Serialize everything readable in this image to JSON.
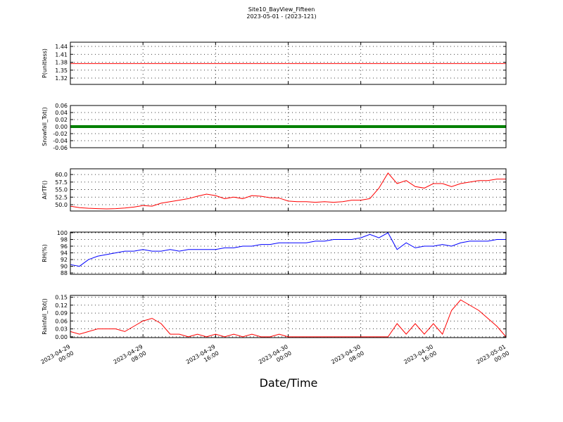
{
  "chart_data": [
    {
      "type": "line",
      "title": "Site10_BayView_Fifteen",
      "subtitle": "2023-05-01 - (2023-121)",
      "ylabel": "P(unitless)",
      "color": "#ff0000",
      "x": [
        "2023-04-29 00:00",
        "2023-04-29 01:00",
        "2023-04-29 02:00",
        "2023-04-29 03:00",
        "2023-04-29 04:00",
        "2023-04-29 05:00",
        "2023-04-29 06:00",
        "2023-04-29 07:00",
        "2023-04-29 08:00",
        "2023-04-29 09:00",
        "2023-04-29 10:00",
        "2023-04-29 11:00",
        "2023-04-29 12:00",
        "2023-04-29 13:00",
        "2023-04-29 14:00",
        "2023-04-29 15:00",
        "2023-04-29 16:00",
        "2023-04-29 17:00",
        "2023-04-29 18:00",
        "2023-04-29 19:00",
        "2023-04-29 20:00",
        "2023-04-29 21:00",
        "2023-04-29 22:00",
        "2023-04-29 23:00",
        "2023-04-30 00:00",
        "2023-04-30 01:00",
        "2023-04-30 02:00",
        "2023-04-30 03:00",
        "2023-04-30 04:00",
        "2023-04-30 05:00",
        "2023-04-30 06:00",
        "2023-04-30 07:00",
        "2023-04-30 08:00",
        "2023-04-30 09:00",
        "2023-04-30 10:00",
        "2023-04-30 11:00",
        "2023-04-30 12:00",
        "2023-04-30 13:00",
        "2023-04-30 14:00",
        "2023-04-30 15:00",
        "2023-04-30 16:00",
        "2023-04-30 17:00",
        "2023-04-30 18:00",
        "2023-04-30 19:00",
        "2023-04-30 20:00",
        "2023-04-30 21:00",
        "2023-04-30 22:00",
        "2023-04-30 23:00",
        "2023-05-01 00:00"
      ],
      "values": [
        1.375,
        1.375,
        1.375,
        1.375,
        1.375,
        1.375,
        1.375,
        1.375,
        1.375,
        1.375,
        1.375,
        1.375,
        1.375,
        1.375,
        1.375,
        1.375,
        1.375,
        1.375,
        1.375,
        1.375,
        1.375,
        1.375,
        1.375,
        1.375,
        1.375,
        1.375,
        1.375,
        1.375,
        1.375,
        1.375,
        1.375,
        1.375,
        1.375,
        1.375,
        1.375,
        1.375,
        1.375,
        1.375,
        1.375,
        1.375,
        1.375,
        1.375,
        1.375,
        1.375,
        1.375,
        1.375,
        1.375,
        1.375,
        1.375
      ],
      "ylim": [
        1.296,
        1.456
      ],
      "yticks": [
        1.32,
        1.35,
        1.38,
        1.41,
        1.44
      ],
      "xlim": [
        "2023-04-29 00:00",
        "2023-05-01 00:00"
      ],
      "xticks": [
        "2023-04-29 00:00",
        "2023-04-29 08:00",
        "2023-04-29 16:00",
        "2023-04-30 00:00",
        "2023-04-30 08:00",
        "2023-04-30 16:00",
        "2023-05-01 00:00"
      ],
      "grid": true
    },
    {
      "type": "line",
      "ylabel": "Snowfall_Tot()",
      "color": "#008000",
      "markers": true,
      "x": [
        "2023-04-29 00:00",
        "2023-04-29 01:00",
        "2023-04-29 02:00",
        "2023-04-29 03:00",
        "2023-04-29 04:00",
        "2023-04-29 05:00",
        "2023-04-29 06:00",
        "2023-04-29 07:00",
        "2023-04-29 08:00",
        "2023-04-29 09:00",
        "2023-04-29 10:00",
        "2023-04-29 11:00",
        "2023-04-29 12:00",
        "2023-04-29 13:00",
        "2023-04-29 14:00",
        "2023-04-29 15:00",
        "2023-04-29 16:00",
        "2023-04-29 17:00",
        "2023-04-29 18:00",
        "2023-04-29 19:00",
        "2023-04-29 20:00",
        "2023-04-29 21:00",
        "2023-04-29 22:00",
        "2023-04-29 23:00",
        "2023-04-30 00:00",
        "2023-04-30 01:00",
        "2023-04-30 02:00",
        "2023-04-30 03:00",
        "2023-04-30 04:00",
        "2023-04-30 05:00",
        "2023-04-30 06:00",
        "2023-04-30 07:00",
        "2023-04-30 08:00",
        "2023-04-30 09:00",
        "2023-04-30 10:00",
        "2023-04-30 11:00",
        "2023-04-30 12:00",
        "2023-04-30 13:00",
        "2023-04-30 14:00",
        "2023-04-30 15:00",
        "2023-04-30 16:00",
        "2023-04-30 17:00",
        "2023-04-30 18:00",
        "2023-04-30 19:00",
        "2023-04-30 20:00",
        "2023-04-30 21:00",
        "2023-04-30 22:00",
        "2023-04-30 23:00",
        "2023-05-01 00:00"
      ],
      "values": [
        0,
        0,
        0,
        0,
        0,
        0,
        0,
        0,
        0,
        0,
        0,
        0,
        0,
        0,
        0,
        0,
        0,
        0,
        0,
        0,
        0,
        0,
        0,
        0,
        0,
        0,
        0,
        0,
        0,
        0,
        0,
        0,
        0,
        0,
        0,
        0,
        0,
        0,
        0,
        0,
        0,
        0,
        0,
        0,
        0,
        0,
        0,
        0,
        0
      ],
      "ylim": [
        -0.06,
        0.06
      ],
      "yticks": [
        -0.06,
        -0.04,
        -0.02,
        {
          "value": 0,
          "label": "0.00"
        },
        0.02,
        0.04,
        0.06
      ],
      "xlim": [
        "2023-04-29 00:00",
        "2023-05-01 00:00"
      ],
      "xticks": [
        "2023-04-29 00:00",
        "2023-04-29 08:00",
        "2023-04-29 16:00",
        "2023-04-30 00:00",
        "2023-04-30 08:00",
        "2023-04-30 16:00",
        "2023-05-01 00:00"
      ],
      "grid": true
    },
    {
      "type": "line",
      "ylabel": "AirTF()",
      "color": "#ff0000",
      "x": [
        "2023-04-29 00:00",
        "2023-04-29 01:00",
        "2023-04-29 02:00",
        "2023-04-29 03:00",
        "2023-04-29 04:00",
        "2023-04-29 05:00",
        "2023-04-29 06:00",
        "2023-04-29 07:00",
        "2023-04-29 08:00",
        "2023-04-29 09:00",
        "2023-04-29 10:00",
        "2023-04-29 11:00",
        "2023-04-29 12:00",
        "2023-04-29 13:00",
        "2023-04-29 14:00",
        "2023-04-29 15:00",
        "2023-04-29 16:00",
        "2023-04-29 17:00",
        "2023-04-29 18:00",
        "2023-04-29 19:00",
        "2023-04-29 20:00",
        "2023-04-29 21:00",
        "2023-04-29 22:00",
        "2023-04-29 23:00",
        "2023-04-30 00:00",
        "2023-04-30 01:00",
        "2023-04-30 02:00",
        "2023-04-30 03:00",
        "2023-04-30 04:00",
        "2023-04-30 05:00",
        "2023-04-30 06:00",
        "2023-04-30 07:00",
        "2023-04-30 08:00",
        "2023-04-30 09:00",
        "2023-04-30 10:00",
        "2023-04-30 11:00",
        "2023-04-30 12:00",
        "2023-04-30 13:00",
        "2023-04-30 14:00",
        "2023-04-30 15:00",
        "2023-04-30 16:00",
        "2023-04-30 17:00",
        "2023-04-30 18:00",
        "2023-04-30 19:00",
        "2023-04-30 20:00",
        "2023-04-30 21:00",
        "2023-04-30 22:00",
        "2023-04-30 23:00",
        "2023-05-01 00:00"
      ],
      "values": [
        49.5,
        49.0,
        48.8,
        48.7,
        48.6,
        48.7,
        48.9,
        49.2,
        49.7,
        49.5,
        50.5,
        51.0,
        51.5,
        52.0,
        52.8,
        53.5,
        53.0,
        52.0,
        52.5,
        52.0,
        53.0,
        52.8,
        52.3,
        52.2,
        51.2,
        51.0,
        51.0,
        50.8,
        51.0,
        50.8,
        51.0,
        51.5,
        51.5,
        52.0,
        55.5,
        60.5,
        57.0,
        58.0,
        56.0,
        55.5,
        57.0,
        57.0,
        56.0,
        57.0,
        57.5,
        58.0,
        58.0,
        58.5,
        58.5
      ],
      "ylim": [
        47.9,
        61.9
      ],
      "yticks": [
        {
          "value": 50,
          "label": "50.0"
        },
        52.5,
        {
          "value": 55,
          "label": "55.0"
        },
        57.5,
        {
          "value": 60,
          "label": "60.0"
        }
      ],
      "xlim": [
        "2023-04-29 00:00",
        "2023-05-01 00:00"
      ],
      "xticks": [
        "2023-04-29 00:00",
        "2023-04-29 08:00",
        "2023-04-29 16:00",
        "2023-04-30 00:00",
        "2023-04-30 08:00",
        "2023-04-30 16:00",
        "2023-05-01 00:00"
      ],
      "grid": true
    },
    {
      "type": "line",
      "ylabel": "RH(%)",
      "color": "#0000ff",
      "x": [
        "2023-04-29 00:00",
        "2023-04-29 01:00",
        "2023-04-29 02:00",
        "2023-04-29 03:00",
        "2023-04-29 04:00",
        "2023-04-29 05:00",
        "2023-04-29 06:00",
        "2023-04-29 07:00",
        "2023-04-29 08:00",
        "2023-04-29 09:00",
        "2023-04-29 10:00",
        "2023-04-29 11:00",
        "2023-04-29 12:00",
        "2023-04-29 13:00",
        "2023-04-29 14:00",
        "2023-04-29 15:00",
        "2023-04-29 16:00",
        "2023-04-29 17:00",
        "2023-04-29 18:00",
        "2023-04-29 19:00",
        "2023-04-29 20:00",
        "2023-04-29 21:00",
        "2023-04-29 22:00",
        "2023-04-29 23:00",
        "2023-04-30 00:00",
        "2023-04-30 01:00",
        "2023-04-30 02:00",
        "2023-04-30 03:00",
        "2023-04-30 04:00",
        "2023-04-30 05:00",
        "2023-04-30 06:00",
        "2023-04-30 07:00",
        "2023-04-30 08:00",
        "2023-04-30 09:00",
        "2023-04-30 10:00",
        "2023-04-30 11:00",
        "2023-04-30 12:00",
        "2023-04-30 13:00",
        "2023-04-30 14:00",
        "2023-04-30 15:00",
        "2023-04-30 16:00",
        "2023-04-30 17:00",
        "2023-04-30 18:00",
        "2023-04-30 19:00",
        "2023-04-30 20:00",
        "2023-04-30 21:00",
        "2023-04-30 22:00",
        "2023-04-30 23:00",
        "2023-05-01 00:00"
      ],
      "values": [
        90.5,
        90.0,
        92.0,
        93.0,
        93.5,
        94.0,
        94.5,
        94.5,
        95.0,
        94.5,
        94.5,
        95.0,
        94.5,
        95.0,
        95.0,
        95.0,
        95.0,
        95.5,
        95.5,
        96.0,
        96.0,
        96.5,
        96.5,
        97.0,
        97.0,
        97.0,
        97.0,
        97.5,
        97.5,
        98.0,
        98.0,
        98.0,
        98.5,
        99.5,
        98.5,
        100.0,
        95.0,
        97.0,
        95.5,
        96.0,
        96.0,
        96.5,
        96.0,
        97.0,
        97.5,
        97.5,
        97.5,
        98.0,
        98.0
      ],
      "ylim": [
        87.6,
        100.2
      ],
      "yticks": [
        88,
        90,
        92,
        94,
        96,
        98,
        100
      ],
      "xlim": [
        "2023-04-29 00:00",
        "2023-05-01 00:00"
      ],
      "xticks": [
        "2023-04-29 00:00",
        "2023-04-29 08:00",
        "2023-04-29 16:00",
        "2023-04-30 00:00",
        "2023-04-30 08:00",
        "2023-04-30 16:00",
        "2023-05-01 00:00"
      ],
      "grid": true
    },
    {
      "type": "line",
      "ylabel": "Rainfall_Tot()",
      "xlabel": "Date/Time",
      "color": "#ff0000",
      "x": [
        "2023-04-29 00:00",
        "2023-04-29 01:00",
        "2023-04-29 02:00",
        "2023-04-29 03:00",
        "2023-04-29 04:00",
        "2023-04-29 05:00",
        "2023-04-29 06:00",
        "2023-04-29 07:00",
        "2023-04-29 08:00",
        "2023-04-29 09:00",
        "2023-04-29 10:00",
        "2023-04-29 11:00",
        "2023-04-29 12:00",
        "2023-04-29 13:00",
        "2023-04-29 14:00",
        "2023-04-29 15:00",
        "2023-04-29 16:00",
        "2023-04-29 17:00",
        "2023-04-29 18:00",
        "2023-04-29 19:00",
        "2023-04-29 20:00",
        "2023-04-29 21:00",
        "2023-04-29 22:00",
        "2023-04-29 23:00",
        "2023-04-30 00:00",
        "2023-04-30 01:00",
        "2023-04-30 02:00",
        "2023-04-30 03:00",
        "2023-04-30 04:00",
        "2023-04-30 05:00",
        "2023-04-30 06:00",
        "2023-04-30 07:00",
        "2023-04-30 08:00",
        "2023-04-30 09:00",
        "2023-04-30 10:00",
        "2023-04-30 11:00",
        "2023-04-30 12:00",
        "2023-04-30 13:00",
        "2023-04-30 14:00",
        "2023-04-30 15:00",
        "2023-04-30 16:00",
        "2023-04-30 17:00",
        "2023-04-30 18:00",
        "2023-04-30 19:00",
        "2023-04-30 20:00",
        "2023-04-30 21:00",
        "2023-04-30 22:00",
        "2023-04-30 23:00",
        "2023-05-01 00:00"
      ],
      "values": [
        0.02,
        0.01,
        0.02,
        0.03,
        0.03,
        0.03,
        0.02,
        0.04,
        0.06,
        0.07,
        0.05,
        0.01,
        0.01,
        0,
        0.01,
        0,
        0.01,
        0,
        0.01,
        0,
        0.01,
        0,
        0,
        0.01,
        0,
        0,
        0,
        0,
        0,
        0,
        0,
        0,
        0,
        0,
        0,
        0,
        0.05,
        0.01,
        0.05,
        0.01,
        0.05,
        0.01,
        0.1,
        0.14,
        0.12,
        0.1,
        0.07,
        0.04,
        0
      ],
      "ylim": [
        -0.003,
        0.157
      ],
      "yticks": [
        {
          "value": 0,
          "label": "0.00"
        },
        0.03,
        0.06,
        0.09,
        0.12,
        0.15
      ],
      "xlim": [
        "2023-04-29 00:00",
        "2023-05-01 00:00"
      ],
      "xticks": [
        {
          "value": "2023-04-29 00:00",
          "label": [
            "2023-04-29",
            "00:00"
          ]
        },
        {
          "value": "2023-04-29 08:00",
          "label": [
            "2023-04-29",
            "08:00"
          ]
        },
        {
          "value": "2023-04-29 16:00",
          "label": [
            "2023-04-29",
            "16:00"
          ]
        },
        {
          "value": "2023-04-30 00:00",
          "label": [
            "2023-04-30",
            "00:00"
          ]
        },
        {
          "value": "2023-04-30 08:00",
          "label": [
            "2023-04-30",
            "08:00"
          ]
        },
        {
          "value": "2023-04-30 16:00",
          "label": [
            "2023-04-30",
            "16:00"
          ]
        },
        {
          "value": "2023-05-01 00:00",
          "label": [
            "2023-05-01",
            "00:00"
          ]
        }
      ],
      "grid": true
    }
  ]
}
